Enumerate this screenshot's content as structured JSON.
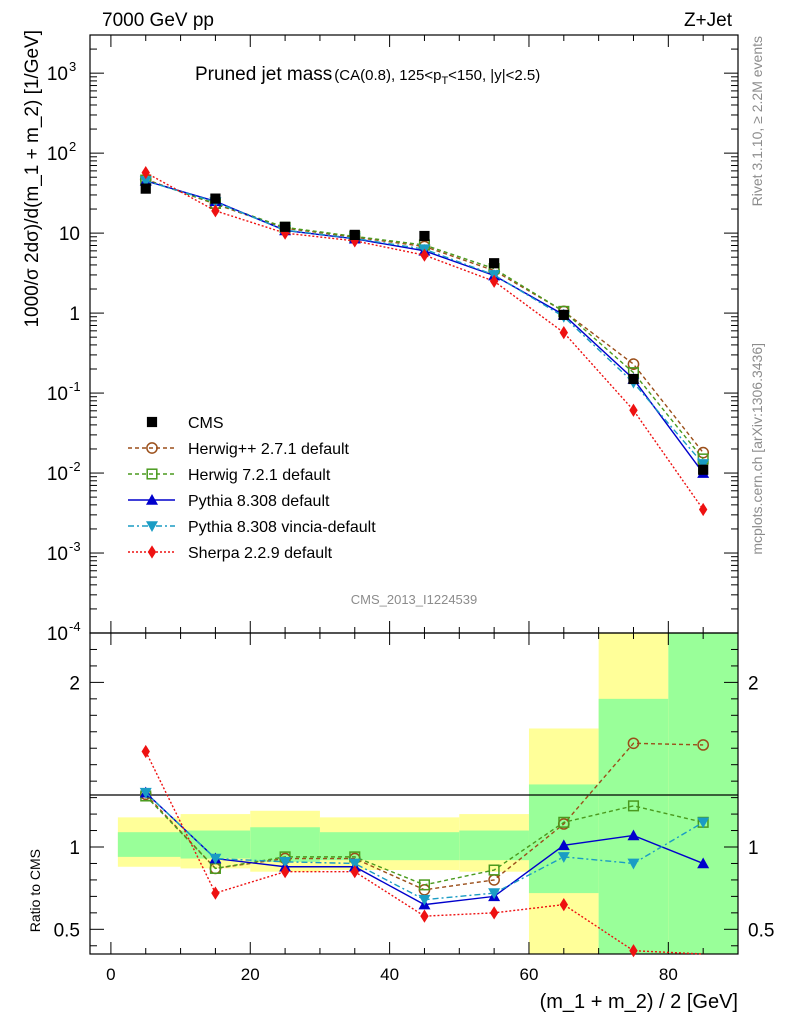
{
  "header": {
    "left": "7000 GeV pp",
    "right": "Z+Jet"
  },
  "side": {
    "top": "Rivet 3.1.10, ≥ 2.2M events",
    "bottom": "mcplots.cern.ch [arXiv:1306.3436]"
  },
  "chart_data": {
    "type": "scatter",
    "title_main": "Pruned jet mass",
    "title_sub": "(CA(0.8), 125<p_T<150, |y|<2.5)",
    "analysis_id": "CMS_2013_I1224539",
    "xlabel": "(m_1 + m_2) / 2 [GeV]",
    "ylabel_main": "1000/σ 2dσ)/d(m_1 + m_2) [1/GeV]",
    "ylabel_ratio": "Ratio to CMS",
    "xlim": [
      -3,
      90
    ],
    "ylim_main": [
      0.0001,
      3000
    ],
    "ylim_ratio": [
      0.35,
      2.3
    ],
    "log_y_main": true,
    "x_ticks": [
      "0",
      "20",
      "40",
      "60",
      "80"
    ],
    "y_ticks_main": [
      "10^-4",
      "10^-3",
      "10^-2",
      "10^-1",
      "1",
      "10",
      "10^2",
      "10^3"
    ],
    "y_ticks_ratio": [
      "0.5",
      "1",
      "2"
    ],
    "legend_position": "bottom-left",
    "x": [
      5,
      15,
      25,
      35,
      45,
      55,
      65,
      75,
      85
    ],
    "data_series": {
      "name": "CMS",
      "color": "#000000",
      "values": [
        36,
        27,
        12,
        9.5,
        9.2,
        4.2,
        0.95,
        0.15,
        0.011
      ]
    },
    "bands": [
      {
        "x0": 1,
        "x1": 10,
        "stat": [
          0.94,
          1.09
        ],
        "total": [
          0.88,
          1.18
        ]
      },
      {
        "x0": 10,
        "x1": 20,
        "stat": [
          0.93,
          1.1
        ],
        "total": [
          0.87,
          1.2
        ]
      },
      {
        "x0": 20,
        "x1": 30,
        "stat": [
          0.91,
          1.12
        ],
        "total": [
          0.85,
          1.22
        ]
      },
      {
        "x0": 30,
        "x1": 50,
        "stat": [
          0.92,
          1.09
        ],
        "total": [
          0.86,
          1.18
        ]
      },
      {
        "x0": 50,
        "x1": 60,
        "stat": [
          0.92,
          1.1
        ],
        "total": [
          0.85,
          1.2
        ]
      },
      {
        "x0": 60,
        "x1": 70,
        "stat": [
          0.72,
          1.38
        ],
        "total": [
          0.35,
          1.72
        ]
      },
      {
        "x0": 70,
        "x1": 80,
        "stat": [
          0.35,
          1.9
        ],
        "total": [
          0.35,
          2.3
        ]
      },
      {
        "x0": 80,
        "x1": 90,
        "stat": [
          0.35,
          2.3
        ],
        "total": [
          0.35,
          2.3
        ]
      }
    ],
    "series": [
      {
        "name": "Herwig++ 2.7.1 default",
        "color": "#9b4f1a",
        "marker": "circle-open",
        "dash": "4,3",
        "values": [
          47,
          23,
          11.5,
          8.9,
          6.8,
          3.4,
          1.05,
          0.23,
          0.018
        ],
        "ratio": [
          1.32,
          0.87,
          0.93,
          0.93,
          0.74,
          0.8,
          1.14,
          1.63,
          1.62
        ]
      },
      {
        "name": "Herwig 7.2.1 default",
        "color": "#4a9a1e",
        "marker": "square-open",
        "dash": "4,3",
        "values": [
          46,
          23.5,
          11.8,
          9.1,
          7.1,
          3.6,
          1.05,
          0.18,
          0.015
        ],
        "ratio": [
          1.31,
          0.87,
          0.94,
          0.94,
          0.77,
          0.86,
          1.15,
          1.25,
          1.15
        ]
      },
      {
        "name": "Pythia 8.308 default",
        "color": "#0000cc",
        "marker": "triangle-up",
        "dash": "",
        "values": [
          45,
          25,
          10.8,
          8.5,
          6.0,
          2.95,
          0.95,
          0.15,
          0.01
        ],
        "ratio": [
          1.33,
          0.93,
          0.88,
          0.88,
          0.65,
          0.7,
          1.01,
          1.07,
          0.9
        ]
      },
      {
        "name": "Pythia 8.308 vincia-default",
        "color": "#1a9cc4",
        "marker": "triangle-down",
        "dash": "6,3,2,3",
        "values": [
          45,
          24.5,
          10.9,
          8.6,
          6.3,
          3.0,
          0.9,
          0.135,
          0.013
        ],
        "ratio": [
          1.33,
          0.93,
          0.91,
          0.9,
          0.68,
          0.72,
          0.94,
          0.9,
          1.15
        ]
      },
      {
        "name": "Sherpa 2.2.9 default",
        "color": "#ee1111",
        "marker": "diamond",
        "dash": "2,2",
        "values": [
          57,
          19,
          10,
          8.0,
          5.3,
          2.5,
          0.57,
          0.061,
          0.0035
        ],
        "ratio": [
          1.58,
          0.72,
          0.85,
          0.85,
          0.58,
          0.6,
          0.65,
          0.37,
          0.32
        ]
      }
    ]
  }
}
